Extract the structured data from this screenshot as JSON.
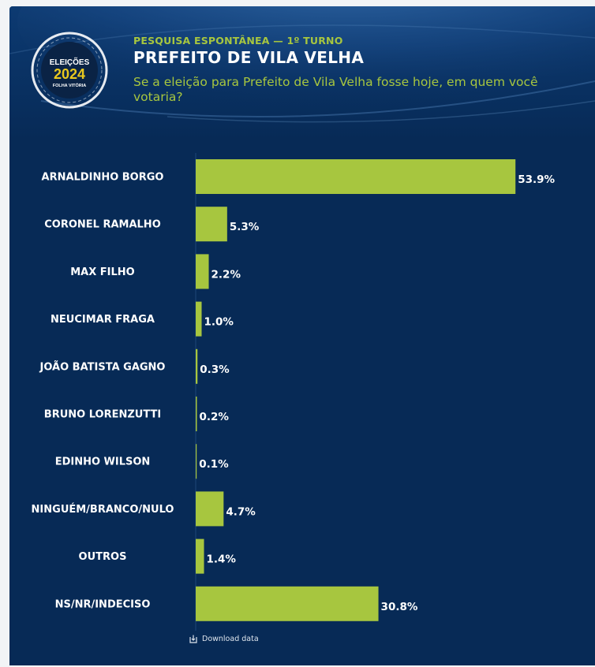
{
  "header": {
    "logo": {
      "title": "ELEIÇÕES",
      "year": "2024",
      "brand": "FOLHA VITÓRIA"
    },
    "subtitle": "PESQUISA ESPONTÂNEA — 1º TURNO",
    "title": "PREFEITO DE VILA VELHA",
    "question": "Se a eleição para Prefeito de Vila Velha fosse hoje, em quem você votaria?"
  },
  "download_label": "Download data",
  "colors": {
    "background": "#072a56",
    "bar": "#a7c63f",
    "accent_text": "#a7c63f",
    "label_text": "#ffffff"
  },
  "chart_data": {
    "type": "bar",
    "orientation": "horizontal",
    "categories": [
      "ARNALDINHO BORGO",
      "CORONEL RAMALHO",
      "MAX FILHO",
      "NEUCIMAR FRAGA",
      "JOÃO BATISTA GAGNO",
      "BRUNO LORENZUTTI",
      "EDINHO WILSON",
      "NINGUÉM/BRANCO/NULO",
      "OUTROS",
      "NS/NR/INDECISO"
    ],
    "values": [
      53.9,
      5.3,
      2.2,
      1.0,
      0.3,
      0.2,
      0.1,
      4.7,
      1.4,
      30.8
    ],
    "value_labels": [
      "53.9%",
      "5.3%",
      "2.2%",
      "1.0%",
      "0.3%",
      "0.2%",
      "0.1%",
      "4.7%",
      "1.4%",
      "30.8%"
    ],
    "xlim": [
      0,
      56
    ],
    "grid": false,
    "legend": "none"
  }
}
